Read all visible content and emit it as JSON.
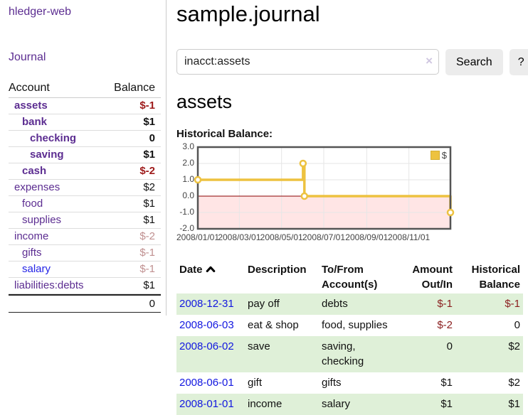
{
  "app": {
    "brand": "hledger-web"
  },
  "sidebar": {
    "journal_link": "Journal",
    "accounts": {
      "header_account": "Account",
      "header_balance": "Balance",
      "rows": [
        {
          "name": "assets",
          "balance": "$-1",
          "depth": 1,
          "bold": true,
          "balance_style": "negative-strong",
          "link_color": "purple"
        },
        {
          "name": "bank",
          "balance": "$1",
          "depth": 2,
          "bold": true,
          "balance_style": "normal",
          "link_color": "purple"
        },
        {
          "name": "checking",
          "balance": "0",
          "depth": 3,
          "bold": true,
          "balance_style": "normal",
          "link_color": "purple"
        },
        {
          "name": "saving",
          "balance": "$1",
          "depth": 3,
          "bold": true,
          "balance_style": "normal",
          "link_color": "purple"
        },
        {
          "name": "cash",
          "balance": "$-2",
          "depth": 2,
          "bold": true,
          "balance_style": "negative-strong",
          "link_color": "purple"
        },
        {
          "name": "expenses",
          "balance": "$2",
          "depth": 1,
          "bold": false,
          "balance_style": "normal",
          "link_color": "purple"
        },
        {
          "name": "food",
          "balance": "$1",
          "depth": 2,
          "bold": false,
          "balance_style": "normal",
          "link_color": "purple"
        },
        {
          "name": "supplies",
          "balance": "$1",
          "depth": 2,
          "bold": false,
          "balance_style": "normal",
          "link_color": "purple"
        },
        {
          "name": "income",
          "balance": "$-2",
          "depth": 1,
          "bold": false,
          "balance_style": "negative-muted",
          "link_color": "purple"
        },
        {
          "name": "gifts",
          "balance": "$-1",
          "depth": 2,
          "bold": false,
          "balance_style": "negative-muted",
          "link_color": "purple"
        },
        {
          "name": "salary",
          "balance": "$-1",
          "depth": 2,
          "bold": false,
          "balance_style": "negative-muted",
          "link_color": "blue"
        },
        {
          "name": "liabilities:debts",
          "balance": "$1",
          "depth": 1,
          "bold": false,
          "balance_style": "normal",
          "link_color": "purple"
        }
      ],
      "total": "0"
    }
  },
  "header": {
    "title": "sample.journal"
  },
  "search": {
    "value": "inacct:assets",
    "clear_icon": "×",
    "button_label": "Search",
    "help_label": "?"
  },
  "main": {
    "account_heading": "assets",
    "chart_title": "Historical Balance:"
  },
  "chart_data": {
    "type": "line",
    "step": true,
    "title": "Historical Balance:",
    "series": [
      {
        "name": "$",
        "color": "#edc240",
        "points": [
          [
            "2008-01-01",
            1
          ],
          [
            "2008-06-01",
            2
          ],
          [
            "2008-06-03",
            0
          ],
          [
            "2008-12-31",
            -1
          ]
        ]
      }
    ],
    "xrange": [
      "2008-01-01",
      "2008-12-31"
    ],
    "ylim": [
      -2,
      3
    ],
    "yticks": [
      "3.0",
      "2.0",
      "1.0",
      "0.0",
      "-1.0",
      "-2.0"
    ],
    "xticks": [
      "2008/01/01",
      "2008/03/01",
      "2008/05/01",
      "2008/07/01",
      "2008/09/01",
      "2008/11/01"
    ],
    "grid": true,
    "legend_position": "top-right",
    "negative_fill": "#ffe5e5",
    "zero_line_color": "#8b0000",
    "border_color": "#545454",
    "gridline_color": "#e6e6e6"
  },
  "register": {
    "columns": [
      "Date",
      "Description",
      "To/From Account(s)",
      "Amount Out/In",
      "Historical Balance"
    ],
    "sort_icon": "chevron-up",
    "rows": [
      {
        "date": "2008-12-31",
        "description": "pay off",
        "accounts": "debts",
        "amount": "$-1",
        "balance": "$-1"
      },
      {
        "date": "2008-06-03",
        "description": "eat & shop",
        "accounts": "food, supplies",
        "amount": "$-2",
        "balance": "0"
      },
      {
        "date": "2008-06-02",
        "description": "save",
        "accounts": "saving, checking",
        "amount": "0",
        "balance": "$2"
      },
      {
        "date": "2008-06-01",
        "description": "gift",
        "accounts": "gifts",
        "amount": "$1",
        "balance": "$2"
      },
      {
        "date": "2008-01-01",
        "description": "income",
        "accounts": "salary",
        "amount": "$1",
        "balance": "$1"
      }
    ]
  }
}
